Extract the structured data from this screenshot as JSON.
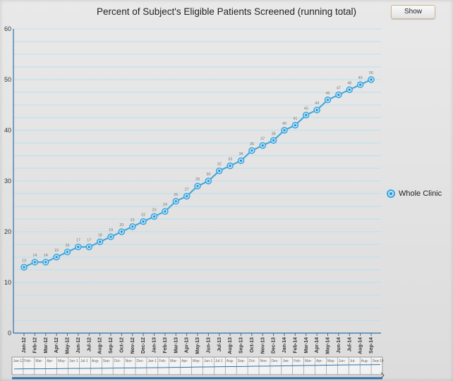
{
  "title": "Percent of Subject's Eligible Patients Screened (running total)",
  "show_button": "Show",
  "colors": {
    "series": "#3aa4dc",
    "grid": "#b8dff0",
    "axis": "#2e6fa8",
    "background": "#e4e4e4"
  },
  "chart_data": {
    "type": "line",
    "title": "Percent of Subject's Eligible Patients Screened (running total)",
    "xlabel": "",
    "ylabel": "",
    "ylim": [
      0,
      60
    ],
    "yticks": [
      0,
      10,
      20,
      30,
      40,
      50,
      60
    ],
    "grid": true,
    "legend_position": "right",
    "categories": [
      "Jan-12",
      "Feb-12",
      "Mar-12",
      "Apr-12",
      "May-12",
      "Jun-12",
      "Jul-12",
      "Aug-12",
      "Sep-12",
      "Oct-12",
      "Nov-12",
      "Dec-12",
      "Jan-13",
      "Feb-13",
      "Mar-13",
      "Apr-13",
      "May-13",
      "Jun-13",
      "Jul-13",
      "Aug-13",
      "Sep-13",
      "Oct-13",
      "Nov-13",
      "Dec-13",
      "Jan-14",
      "Feb-14",
      "Mar-14",
      "Apr-14",
      "May-14",
      "Jun-14",
      "Jul-14",
      "Aug-14",
      "Sep-14"
    ],
    "series": [
      {
        "name": "Whole Clinic",
        "values": [
          13,
          14,
          14,
          15,
          16,
          17,
          17,
          18,
          19,
          20,
          21,
          22,
          23,
          24,
          26,
          27,
          29,
          30,
          32,
          33,
          34,
          36,
          37,
          38,
          40,
          41,
          43,
          44,
          46,
          47,
          48,
          49,
          50
        ]
      }
    ],
    "navigator_labels": [
      "Jan-12",
      "Feb-",
      "Mar-",
      "Apr-",
      "May-",
      "Jun-1",
      "Jul-1",
      "Aug-",
      "Sep-",
      "Oct-",
      "Nov-",
      "Dec-",
      "Jan-1",
      "Feb-",
      "Mar-",
      "Apr-",
      "May-",
      "Jun-1",
      "Jul-1",
      "Aug-",
      "Sep-",
      "Oct-",
      "Nov-",
      "Dec-",
      "Jan-",
      "Feb-",
      "Mar-",
      "Apr-",
      "May-",
      "Jun-",
      "Jul-",
      "Aug-",
      "Sep-14"
    ]
  }
}
